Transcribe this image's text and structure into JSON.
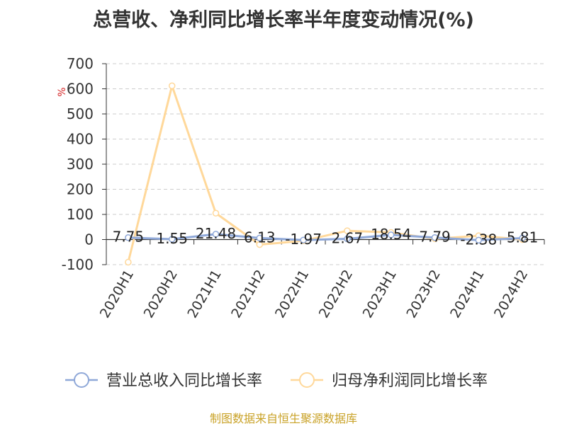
{
  "colors": {
    "series_revenue": "#8fa8d8",
    "series_profit": "#ffd89a",
    "unit": "#d62728",
    "source": "#c9a227"
  },
  "chart_data": {
    "type": "line",
    "title": "总营收、净利同比增长率半年度变动情况(%)",
    "ylabel": "%",
    "xlabel": "",
    "ylim": [
      -100,
      700
    ],
    "yticks": [
      -100,
      0,
      100,
      200,
      300,
      400,
      500,
      600,
      700
    ],
    "grid": true,
    "legend": "bottom",
    "categories": [
      "2020H1",
      "2020H2",
      "2021H1",
      "2021H2",
      "2022H1",
      "2022H2",
      "2023H1",
      "2023H2",
      "2024H1",
      "2024H2"
    ],
    "series": [
      {
        "name": "营业总收入同比增长率",
        "values": [
          7.75,
          1.55,
          21.48,
          6.13,
          -1.97,
          2.67,
          18.54,
          7.79,
          -2.38,
          5.81
        ],
        "data_labels": [
          "7.75",
          "1.55",
          "21.48",
          "6.13",
          "-1.97",
          "2.67",
          "18.54",
          "7.79",
          "-2.38",
          "5.81"
        ]
      },
      {
        "name": "归母净利润同比增长率",
        "values": [
          -90,
          612,
          105,
          -20,
          -5,
          35,
          28,
          3,
          15,
          0
        ]
      }
    ]
  },
  "source_text": "制图数据来自恒生聚源数据库"
}
